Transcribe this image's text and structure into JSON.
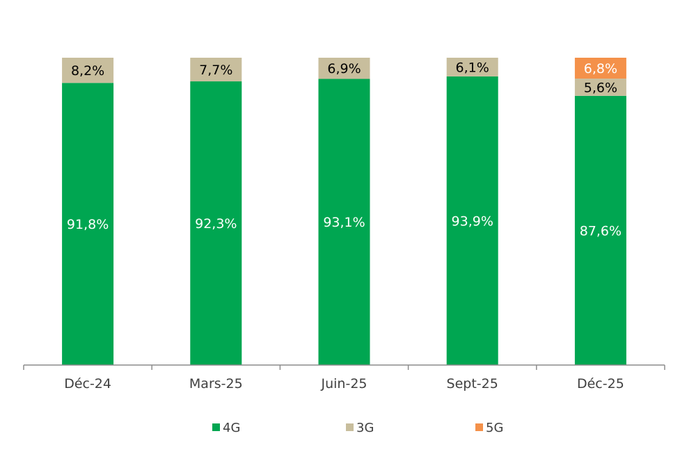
{
  "chart_data": {
    "type": "bar",
    "stacked": true,
    "title": "",
    "xlabel": "",
    "ylabel": "",
    "ylim": [
      0,
      100
    ],
    "grid": false,
    "legend_position": "bottom",
    "categories": [
      "Déc-24",
      "Mars-25",
      "Juin-25",
      "Sept-25",
      "Déc-25"
    ],
    "series": [
      {
        "name": "4G",
        "color": "#00A651",
        "label_color": "#ffffff",
        "values": [
          91.8,
          92.3,
          93.1,
          93.9,
          87.6
        ],
        "labels": [
          "91,8%",
          "92,3%",
          "93,1%",
          "93,9%",
          "87,6%"
        ]
      },
      {
        "name": "3G",
        "color": "#C8BE9D",
        "label_color": "#000000",
        "values": [
          8.2,
          7.7,
          6.9,
          6.1,
          5.6
        ],
        "labels": [
          "8,2%",
          "7,7%",
          "6,9%",
          "6,1%",
          "5,6%"
        ]
      },
      {
        "name": "5G",
        "color": "#F4914A",
        "label_color": "#ffffff",
        "values": [
          0,
          0,
          0,
          0,
          6.8
        ],
        "labels": [
          "",
          "",
          "",
          "",
          "6,8%"
        ]
      }
    ]
  }
}
